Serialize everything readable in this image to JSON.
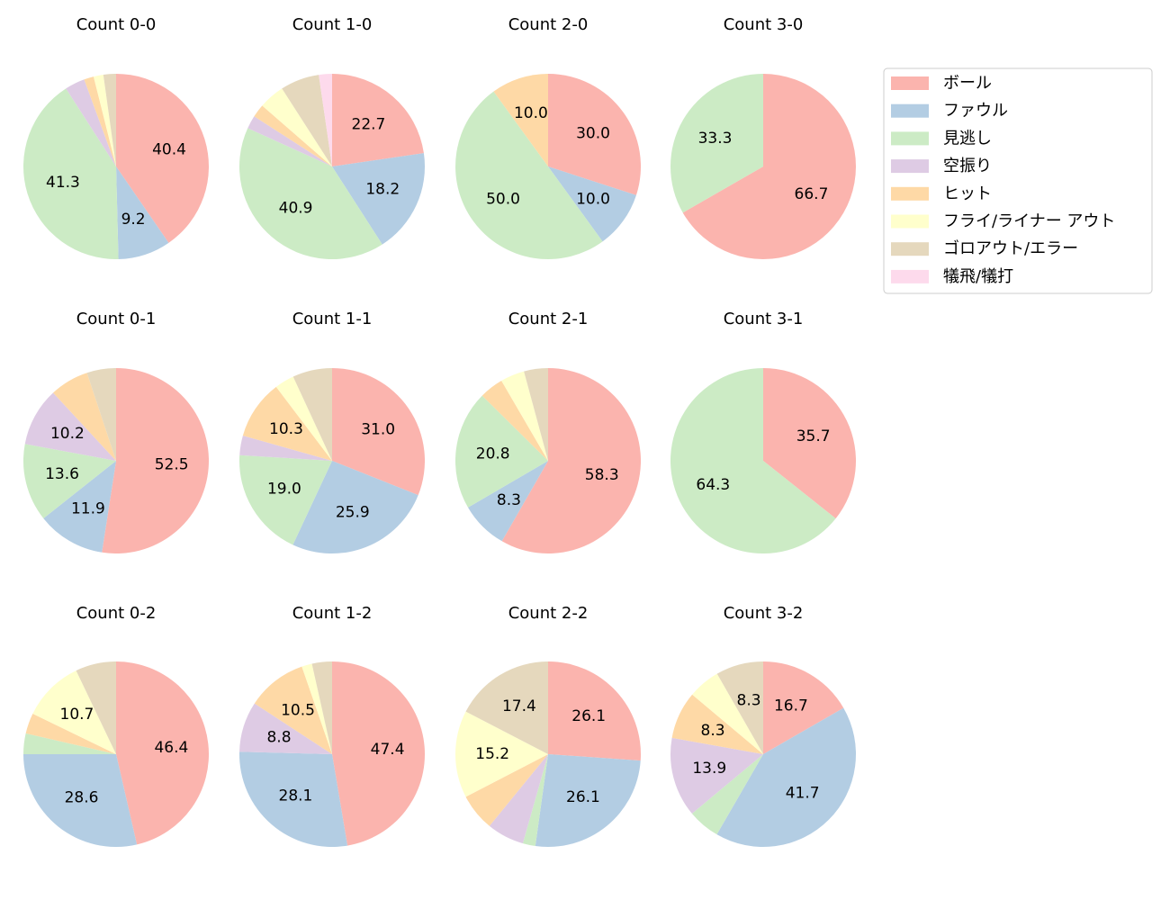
{
  "legend": {
    "labels": [
      "ボール",
      "ファウル",
      "見逃し",
      "空振り",
      "ヒット",
      "フライ/ライナー アウト",
      "ゴロアウト/エラー",
      "犠飛/犠打"
    ],
    "colors": [
      "#fbb4ae",
      "#b3cde3",
      "#ccebc5",
      "#decbe4",
      "#fed9a6",
      "#ffffcc",
      "#e5d8bd",
      "#fddaec"
    ],
    "position": "upper right"
  },
  "chart_data": [
    {
      "type": "pie",
      "title": "Count 0-0",
      "values": [
        40.4,
        9.2,
        41.3,
        3.5,
        1.7,
        1.7,
        2.2,
        0
      ],
      "value_labels": [
        "40.4",
        "9.2",
        "41.3",
        null,
        null,
        null,
        null,
        null
      ]
    },
    {
      "type": "pie",
      "title": "Count 1-0",
      "values": [
        22.7,
        18.2,
        40.9,
        2.3,
        2.3,
        4.5,
        6.8,
        2.3
      ],
      "value_labels": [
        "22.7",
        "18.2",
        "40.9",
        null,
        null,
        null,
        null,
        null
      ]
    },
    {
      "type": "pie",
      "title": "Count 2-0",
      "values": [
        30.0,
        10.0,
        50.0,
        0,
        10.0,
        0,
        0,
        0
      ],
      "value_labels": [
        "30.0",
        "10.0",
        "50.0",
        null,
        "10.0",
        null,
        null,
        null
      ]
    },
    {
      "type": "pie",
      "title": "Count 3-0",
      "values": [
        66.7,
        0,
        33.3,
        0,
        0,
        0,
        0,
        0
      ],
      "value_labels": [
        "66.7",
        null,
        "33.3",
        null,
        null,
        null,
        null,
        null
      ]
    },
    {
      "type": "pie",
      "title": "Count 0-1",
      "values": [
        52.5,
        11.9,
        13.6,
        10.2,
        6.8,
        0,
        5.1,
        0
      ],
      "value_labels": [
        "52.5",
        "11.9",
        "13.6",
        "10.2",
        null,
        null,
        null,
        null
      ]
    },
    {
      "type": "pie",
      "title": "Count 1-1",
      "values": [
        31.0,
        25.9,
        19.0,
        3.4,
        10.3,
        3.4,
        6.9,
        0
      ],
      "value_labels": [
        "31.0",
        "25.9",
        "19.0",
        null,
        "10.3",
        null,
        null,
        null
      ]
    },
    {
      "type": "pie",
      "title": "Count 2-1",
      "values": [
        58.3,
        8.3,
        20.8,
        0,
        4.2,
        4.2,
        4.2,
        0
      ],
      "value_labels": [
        "58.3",
        "8.3",
        "20.8",
        null,
        null,
        null,
        null,
        null
      ]
    },
    {
      "type": "pie",
      "title": "Count 3-1",
      "values": [
        35.7,
        0,
        64.3,
        0,
        0,
        0,
        0,
        0
      ],
      "value_labels": [
        "35.7",
        null,
        "64.3",
        null,
        null,
        null,
        null,
        null
      ]
    },
    {
      "type": "pie",
      "title": "Count 0-2",
      "values": [
        46.4,
        28.6,
        3.6,
        0,
        3.6,
        10.7,
        7.1,
        0
      ],
      "value_labels": [
        "46.4",
        "28.6",
        null,
        null,
        null,
        "10.7",
        null,
        null
      ]
    },
    {
      "type": "pie",
      "title": "Count 1-2",
      "values": [
        47.4,
        28.1,
        0,
        8.8,
        10.5,
        1.8,
        3.5,
        0
      ],
      "value_labels": [
        "47.4",
        "28.1",
        null,
        "8.8",
        "10.5",
        null,
        null,
        null
      ]
    },
    {
      "type": "pie",
      "title": "Count 2-2",
      "values": [
        26.1,
        26.1,
        2.2,
        6.5,
        6.5,
        15.2,
        17.4,
        0
      ],
      "value_labels": [
        "26.1",
        "26.1",
        null,
        null,
        null,
        "15.2",
        "17.4",
        null
      ]
    },
    {
      "type": "pie",
      "title": "Count 3-2",
      "values": [
        16.7,
        41.7,
        5.6,
        13.9,
        8.3,
        5.6,
        8.3,
        0
      ],
      "value_labels": [
        "16.7",
        "41.7",
        null,
        "13.9",
        "8.3",
        null,
        "8.3",
        null
      ]
    }
  ]
}
